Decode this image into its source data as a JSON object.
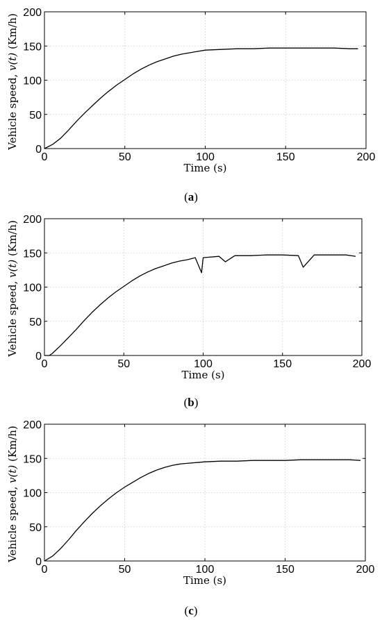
{
  "chart_data": [
    {
      "type": "line",
      "caption_letter": "a",
      "xlabel": "Time (s)",
      "ylabel_prefix": "Vehicle speed, ",
      "ylabel_var": "v(t)",
      "ylabel_unit": " (Km/h)",
      "xlim": [
        0,
        200
      ],
      "ylim": [
        0,
        200
      ],
      "xticks": [
        0,
        50,
        100,
        150,
        200
      ],
      "yticks": [
        0,
        50,
        100,
        150,
        200
      ],
      "grid": true,
      "series": [
        {
          "x": [
            0,
            5,
            10,
            15,
            20,
            25,
            30,
            35,
            40,
            45,
            50,
            55,
            60,
            65,
            70,
            75,
            80,
            85,
            90,
            95,
            100,
            110,
            120,
            130,
            140,
            150,
            160,
            170,
            180,
            190,
            195
          ],
          "y": [
            0,
            6,
            15,
            27,
            40,
            52,
            63,
            74,
            84,
            93,
            101,
            109,
            116,
            122,
            127,
            131,
            135,
            138,
            140,
            142,
            144,
            145,
            146,
            146,
            147,
            147,
            147,
            147,
            147,
            146,
            146
          ]
        }
      ]
    },
    {
      "type": "line",
      "caption_letter": "b",
      "xlabel": "Time (s)",
      "ylabel_prefix": "Vehicle speed, ",
      "ylabel_var": "v(t)",
      "ylabel_unit": " (Km/h)",
      "xlim": [
        0,
        200
      ],
      "ylim": [
        0,
        200
      ],
      "xticks": [
        0,
        50,
        100,
        150,
        200
      ],
      "yticks": [
        0,
        50,
        100,
        150,
        200
      ],
      "grid": true,
      "series": [
        {
          "x": [
            0,
            3,
            5,
            10,
            15,
            20,
            25,
            30,
            35,
            40,
            45,
            50,
            55,
            60,
            65,
            70,
            75,
            80,
            85,
            90,
            95,
            99,
            100,
            110,
            114,
            120,
            130,
            140,
            150,
            160,
            163,
            170,
            180,
            190,
            196
          ],
          "y": [
            0,
            0,
            3,
            14,
            26,
            38,
            51,
            63,
            74,
            84,
            93,
            101,
            109,
            116,
            122,
            127,
            131,
            135,
            138,
            140,
            143,
            121,
            143,
            145,
            137,
            146,
            146,
            147,
            147,
            146,
            129,
            147,
            147,
            147,
            145
          ]
        }
      ]
    },
    {
      "type": "line",
      "caption_letter": "c",
      "xlabel": "Time (s)",
      "ylabel_prefix": "Vehicle speed, ",
      "ylabel_var": "v(t)",
      "ylabel_unit": " (Km/h)",
      "xlim": [
        0,
        200
      ],
      "ylim": [
        0,
        200
      ],
      "xticks": [
        0,
        50,
        100,
        150,
        200
      ],
      "yticks": [
        0,
        50,
        100,
        150,
        200
      ],
      "grid": true,
      "series": [
        {
          "x": [
            0,
            5,
            10,
            15,
            20,
            25,
            30,
            35,
            40,
            45,
            50,
            55,
            60,
            65,
            70,
            75,
            80,
            85,
            90,
            95,
            100,
            110,
            120,
            130,
            140,
            150,
            160,
            170,
            180,
            190,
            197
          ],
          "y": [
            0,
            7,
            18,
            31,
            45,
            58,
            70,
            81,
            91,
            100,
            108,
            115,
            122,
            128,
            133,
            137,
            140,
            142,
            143,
            144,
            145,
            146,
            146,
            147,
            147,
            147,
            148,
            148,
            148,
            148,
            147
          ]
        }
      ]
    }
  ]
}
